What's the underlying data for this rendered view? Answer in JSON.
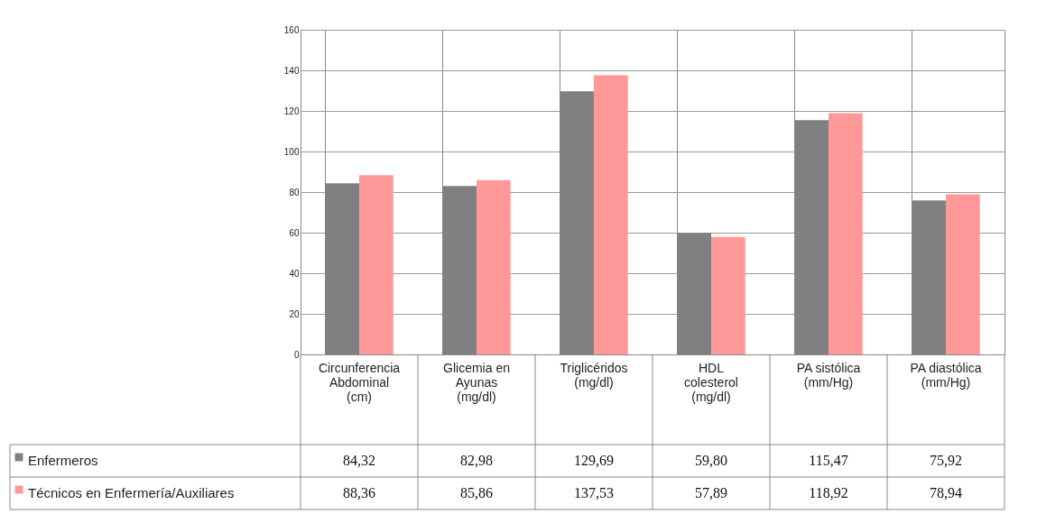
{
  "chart_data": {
    "type": "bar",
    "categories": [
      "Circunferencia\nAbdominal\n(cm)",
      "Glicemia en\nAyunas\n(mg/dl)",
      "Triglicéridos\n(mg/dl)",
      "HDL\ncolesterol\n(mg/dl)",
      "PA sistólica\n(mm/Hg)",
      "PA diastólica\n(mm/Hg)"
    ],
    "series": [
      {
        "name": "Enfermeros",
        "color": "#808080",
        "values": [
          84.32,
          82.98,
          129.69,
          59.8,
          115.47,
          75.92
        ],
        "value_labels": [
          "84,32",
          "82,98",
          "129,69",
          "59,80",
          "115,47",
          "75,92"
        ]
      },
      {
        "name": "Técnicos en Enfermería/Auxiliares",
        "color": "#ff9999",
        "values": [
          88.36,
          85.86,
          137.53,
          57.89,
          118.92,
          78.94
        ],
        "value_labels": [
          "88,36",
          "85,86",
          "137,53",
          "57,89",
          "118,92",
          "78,94"
        ]
      }
    ],
    "ylim": [
      0,
      160
    ],
    "yticks": [
      0,
      20,
      40,
      60,
      80,
      100,
      120,
      140,
      160
    ],
    "grid": true,
    "legend": "bottom left"
  }
}
